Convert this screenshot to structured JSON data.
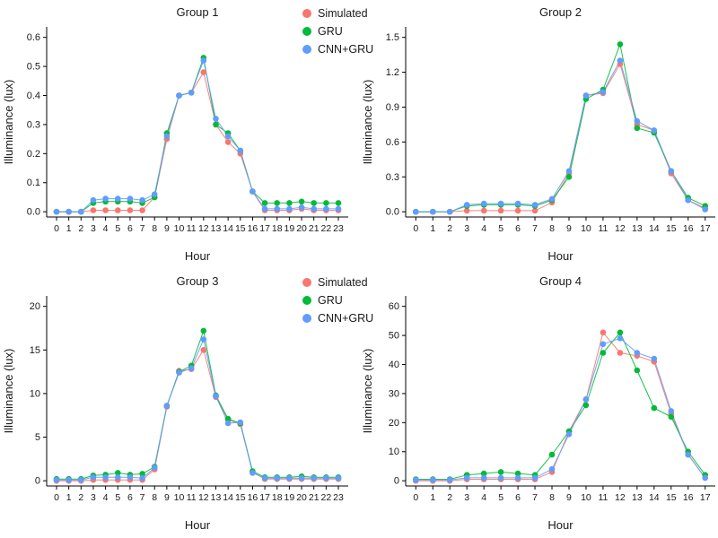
{
  "legend": {
    "items": [
      {
        "label": "Simulated",
        "color": "#F8766D"
      },
      {
        "label": "GRU",
        "color": "#00BA38"
      },
      {
        "label": "CNN+GRU",
        "color": "#619CFF"
      }
    ]
  },
  "chart_data": [
    {
      "type": "line",
      "title": "Group 1",
      "xlabel": "Hour",
      "ylabel": "Illuminance (lux)",
      "legend_position": "top-right-outside",
      "grid": false,
      "x": [
        0,
        1,
        2,
        3,
        4,
        5,
        6,
        7,
        8,
        9,
        10,
        11,
        12,
        13,
        14,
        15,
        16,
        17,
        18,
        19,
        20,
        21,
        22,
        23
      ],
      "xlim": [
        0,
        23
      ],
      "ylim": [
        0,
        0.6
      ],
      "yticks": [
        0,
        0.1,
        0.2,
        0.3,
        0.4,
        0.5,
        0.6
      ],
      "ytick_labels": [
        "0.0",
        "0.1",
        "0.2",
        "0.3",
        "0.4",
        "0.5",
        "0.6"
      ],
      "margins": {
        "l": 52,
        "r": 12,
        "t": 30,
        "b": 58
      },
      "series": [
        {
          "name": "Simulated",
          "color": "#F8766D",
          "values": [
            0,
            0,
            0,
            0.005,
            0.005,
            0.005,
            0.005,
            0.005,
            0.05,
            0.25,
            0.4,
            0.41,
            0.48,
            0.3,
            0.24,
            0.2,
            0.07,
            0.005,
            0.005,
            0.005,
            0.01,
            0.005,
            0.005,
            0.005
          ]
        },
        {
          "name": "GRU",
          "color": "#00BA38",
          "values": [
            0,
            0,
            0,
            0.03,
            0.035,
            0.035,
            0.035,
            0.03,
            0.05,
            0.27,
            0.4,
            0.41,
            0.53,
            0.3,
            0.27,
            0.21,
            0.07,
            0.03,
            0.03,
            0.03,
            0.035,
            0.03,
            0.03,
            0.03
          ]
        },
        {
          "name": "CNN+GRU",
          "color": "#619CFF",
          "values": [
            0,
            0,
            0,
            0.04,
            0.045,
            0.045,
            0.045,
            0.04,
            0.06,
            0.26,
            0.4,
            0.41,
            0.52,
            0.32,
            0.26,
            0.21,
            0.07,
            0.01,
            0.01,
            0.01,
            0.015,
            0.01,
            0.01,
            0.01
          ]
        }
      ]
    },
    {
      "type": "line",
      "title": "Group 2",
      "xlabel": "Hour",
      "ylabel": "Illuminance (lux)",
      "legend_position": "none",
      "grid": false,
      "x": [
        0,
        1,
        2,
        3,
        4,
        5,
        6,
        7,
        8,
        9,
        10,
        11,
        12,
        13,
        14,
        15,
        16,
        17
      ],
      "xlim": [
        0,
        17
      ],
      "ylim": [
        0,
        1.5
      ],
      "yticks": [
        0,
        0.3,
        0.6,
        0.9,
        1.2,
        1.5
      ],
      "ytick_labels": [
        "0.0",
        "0.3",
        "0.6",
        "0.9",
        "1.2",
        "1.5"
      ],
      "margins": {
        "l": 52,
        "r": 3,
        "t": 30,
        "b": 58
      },
      "series": [
        {
          "name": "Simulated",
          "color": "#F8766D",
          "values": [
            0,
            0,
            0,
            0.01,
            0.01,
            0.01,
            0.01,
            0.01,
            0.08,
            0.33,
            1.0,
            1.02,
            1.27,
            0.75,
            0.7,
            0.33,
            0.1,
            0.03
          ]
        },
        {
          "name": "GRU",
          "color": "#00BA38",
          "values": [
            0,
            0,
            0,
            0.05,
            0.06,
            0.06,
            0.06,
            0.05,
            0.1,
            0.3,
            0.97,
            1.05,
            1.44,
            0.72,
            0.68,
            0.35,
            0.12,
            0.05
          ]
        },
        {
          "name": "CNN+GRU",
          "color": "#619CFF",
          "values": [
            0,
            0,
            0,
            0.06,
            0.07,
            0.07,
            0.07,
            0.06,
            0.11,
            0.35,
            1.0,
            1.03,
            1.3,
            0.78,
            0.7,
            0.35,
            0.1,
            0.02
          ]
        }
      ]
    },
    {
      "type": "line",
      "title": "Group 3",
      "xlabel": "Hour",
      "ylabel": "Illuminance (lux)",
      "legend_position": "top-right-outside",
      "grid": false,
      "x": [
        0,
        1,
        2,
        3,
        4,
        5,
        6,
        7,
        8,
        9,
        10,
        11,
        12,
        13,
        14,
        15,
        16,
        17,
        18,
        19,
        20,
        21,
        22,
        23
      ],
      "xlim": [
        0,
        23
      ],
      "ylim": [
        0,
        20
      ],
      "yticks": [
        0,
        5,
        10,
        15,
        20
      ],
      "ytick_labels": [
        "0",
        "5",
        "10",
        "15",
        "20"
      ],
      "margins": {
        "l": 52,
        "r": 12,
        "t": 30,
        "b": 58
      },
      "series": [
        {
          "name": "Simulated",
          "color": "#F8766D",
          "values": [
            0,
            0,
            0,
            0.1,
            0.1,
            0.1,
            0.1,
            0.1,
            1.3,
            8.5,
            12.6,
            12.8,
            15.0,
            9.6,
            7.0,
            6.5,
            1.0,
            0.2,
            0.2,
            0.2,
            0.2,
            0.2,
            0.2,
            0.2
          ]
        },
        {
          "name": "GRU",
          "color": "#00BA38",
          "values": [
            0.2,
            0.2,
            0.2,
            0.6,
            0.7,
            0.9,
            0.7,
            0.8,
            1.6,
            8.6,
            12.5,
            13.2,
            17.2,
            9.8,
            7.1,
            6.6,
            1.1,
            0.4,
            0.4,
            0.4,
            0.5,
            0.4,
            0.4,
            0.4
          ]
        },
        {
          "name": "CNN+GRU",
          "color": "#619CFF",
          "values": [
            0.1,
            0.1,
            0.1,
            0.4,
            0.4,
            0.4,
            0.4,
            0.3,
            1.5,
            8.6,
            12.4,
            12.9,
            16.2,
            9.7,
            6.6,
            6.7,
            0.9,
            0.3,
            0.3,
            0.3,
            0.3,
            0.3,
            0.3,
            0.3
          ]
        }
      ]
    },
    {
      "type": "line",
      "title": "Group 4",
      "xlabel": "Hour",
      "ylabel": "Illuminance (lux)",
      "legend_position": "none",
      "grid": false,
      "x": [
        0,
        1,
        2,
        3,
        4,
        5,
        6,
        7,
        8,
        9,
        10,
        11,
        12,
        13,
        14,
        15,
        16,
        17
      ],
      "xlim": [
        0,
        17
      ],
      "ylim": [
        0,
        60
      ],
      "yticks": [
        0,
        10,
        20,
        30,
        40,
        50,
        60
      ],
      "ytick_labels": [
        "0",
        "10",
        "20",
        "30",
        "40",
        "50",
        "60"
      ],
      "margins": {
        "l": 52,
        "r": 3,
        "t": 30,
        "b": 58
      },
      "series": [
        {
          "name": "Simulated",
          "color": "#F8766D",
          "values": [
            0,
            0,
            0,
            0.5,
            0.5,
            0.5,
            0.5,
            0.5,
            3,
            17,
            28,
            51,
            44,
            43,
            41,
            23,
            9,
            1
          ]
        },
        {
          "name": "GRU",
          "color": "#00BA38",
          "values": [
            0.5,
            0.5,
            0.5,
            2,
            2.5,
            3,
            2.5,
            2,
            9,
            17,
            26,
            44,
            51,
            38,
            25,
            22,
            10,
            2
          ]
        },
        {
          "name": "CNN+GRU",
          "color": "#619CFF",
          "values": [
            0.3,
            0.3,
            0.3,
            1,
            1,
            1,
            1,
            1,
            4,
            16,
            28,
            47,
            49,
            44,
            42,
            24,
            9,
            1
          ]
        }
      ]
    }
  ]
}
